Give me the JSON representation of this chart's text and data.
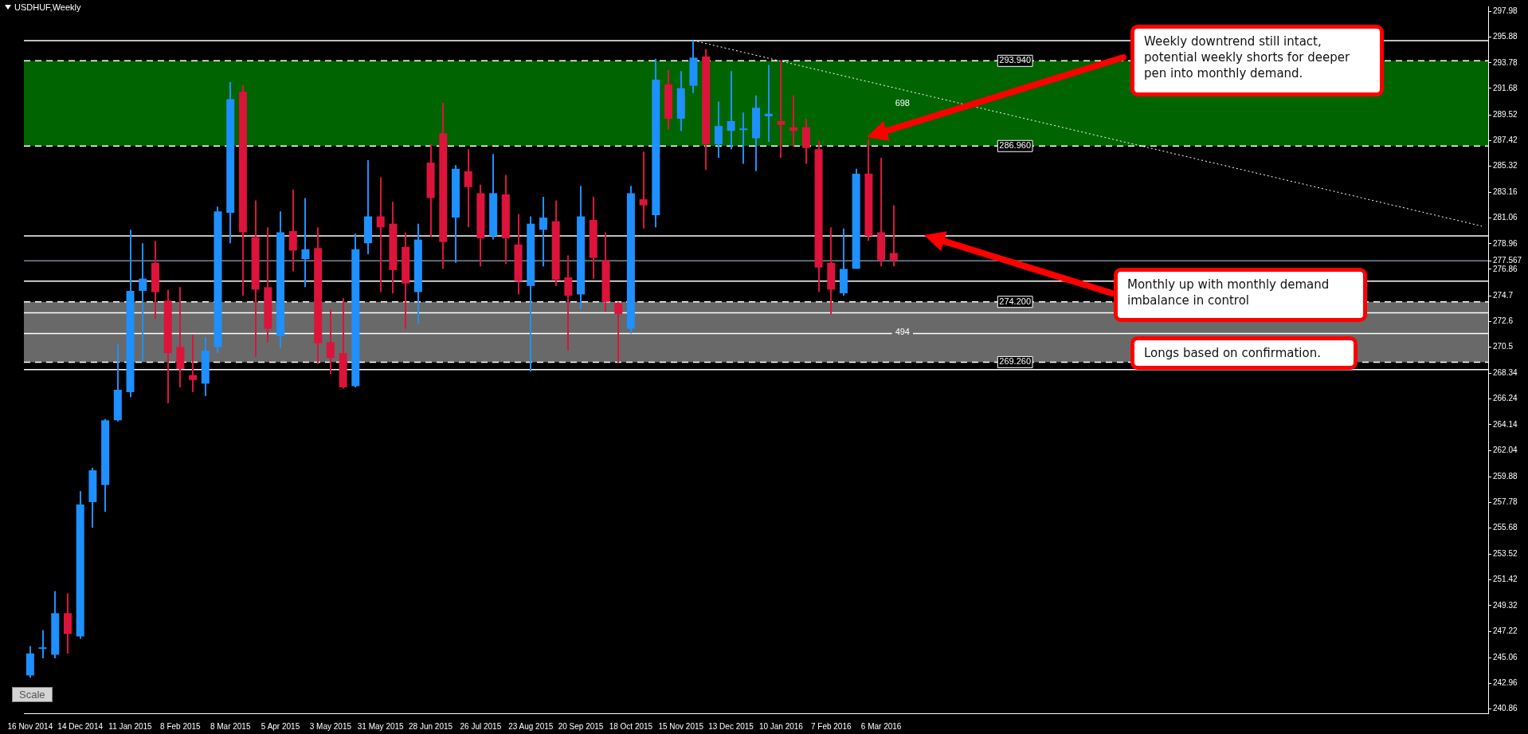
{
  "chart_data": {
    "type": "candlestick",
    "title": "USDHUF,Weekly",
    "categories": [
      "16 Nov 2014",
      null,
      null,
      null,
      "14 Dec 2014",
      null,
      null,
      null,
      "11 Jan 2015",
      null,
      null,
      null,
      "8 Feb 2015",
      null,
      null,
      null,
      "8 Mar 2015",
      null,
      null,
      null,
      "5 Apr 2015",
      null,
      null,
      null,
      "3 May 2015",
      null,
      null,
      null,
      "31 May 2015",
      null,
      null,
      null,
      "28 Jun 2015",
      null,
      null,
      null,
      "26 Jul 2015",
      null,
      null,
      null,
      "23 Aug 2015",
      null,
      null,
      null,
      "20 Sep 2015",
      null,
      null,
      null,
      "18 Oct 2015",
      null,
      null,
      null,
      "15 Nov 2015",
      null,
      null,
      null,
      "13 Dec 2015",
      null,
      null,
      null,
      "10 Jan 2016",
      null,
      null,
      null,
      "7 Feb 2016",
      null,
      null,
      null,
      "6 Mar 2016",
      null,
      null,
      null,
      null,
      null,
      null,
      null,
      null,
      null,
      null,
      null,
      null,
      null,
      null,
      null,
      null,
      null,
      null,
      null,
      null,
      null,
      null,
      null,
      null,
      null,
      null,
      null,
      null,
      null,
      null,
      null,
      null,
      null,
      null,
      null,
      null,
      null,
      null,
      null,
      null,
      null,
      null,
      null,
      null,
      null,
      null,
      null,
      null
    ],
    "series": [
      {
        "ohlc": [
          [
            243.6,
            246.0,
            243.4,
            245.4
          ],
          [
            245.8,
            247.3,
            245.0,
            245.9
          ],
          [
            245.3,
            250.5,
            245.0,
            248.7
          ],
          [
            248.7,
            250.3,
            245.4,
            247.0
          ],
          [
            246.8,
            258.7,
            246.6,
            257.6
          ],
          [
            257.8,
            260.6,
            255.7,
            260.4
          ],
          [
            259.2,
            264.6,
            257.0,
            264.5
          ],
          [
            264.5,
            270.7,
            264.4,
            267.0
          ],
          [
            266.8,
            280.1,
            266.4,
            275.1
          ],
          [
            275.1,
            279.0,
            269.3,
            276.1
          ],
          [
            277.4,
            279.2,
            272.8,
            275.0
          ],
          [
            274.3,
            275.2,
            265.9,
            270.0
          ],
          [
            270.5,
            275.4,
            267.2,
            268.7
          ],
          [
            268.2,
            271.5,
            266.8,
            267.8
          ],
          [
            267.5,
            271.3,
            266.5,
            270.2
          ],
          [
            270.5,
            282.0,
            270.0,
            281.6
          ],
          [
            281.5,
            292.2,
            279.0,
            290.8
          ],
          [
            291.4,
            291.9,
            274.7,
            279.9
          ],
          [
            279.5,
            282.5,
            269.7,
            275.2
          ],
          [
            275.4,
            280.3,
            270.9,
            272.0
          ],
          [
            271.4,
            281.6,
            270.4,
            279.9
          ],
          [
            280.0,
            283.4,
            276.7,
            278.4
          ],
          [
            277.7,
            282.7,
            275.4,
            278.5
          ],
          [
            278.6,
            280.3,
            269.1,
            270.8
          ],
          [
            270.9,
            273.6,
            268.3,
            269.6
          ],
          [
            270.0,
            274.5,
            267.1,
            267.2
          ],
          [
            267.3,
            279.8,
            267.2,
            278.5
          ],
          [
            279.0,
            285.8,
            278.1,
            281.2
          ],
          [
            281.2,
            284.4,
            275.0,
            280.3
          ],
          [
            280.6,
            282.4,
            274.9,
            276.8
          ],
          [
            278.7,
            279.9,
            272.0,
            275.7
          ],
          [
            275.0,
            280.6,
            272.4,
            279.3
          ],
          [
            285.6,
            287.1,
            279.5,
            282.7
          ],
          [
            288.0,
            290.5,
            276.9,
            279.1
          ],
          [
            281.1,
            285.4,
            277.4,
            285.1
          ],
          [
            284.9,
            286.7,
            280.3,
            283.6
          ],
          [
            283.1,
            283.8,
            277.1,
            279.4
          ],
          [
            279.6,
            286.3,
            279.3,
            283.1
          ],
          [
            283.0,
            284.6,
            277.3,
            279.4
          ],
          [
            278.9,
            281.4,
            274.8,
            275.9
          ],
          [
            275.5,
            281.2,
            268.5,
            280.6
          ],
          [
            280.1,
            282.8,
            277.1,
            281.1
          ],
          [
            280.8,
            282.5,
            275.5,
            276.0
          ],
          [
            276.2,
            278.0,
            270.2,
            274.7
          ],
          [
            274.8,
            283.7,
            273.6,
            281.2
          ],
          [
            280.9,
            282.8,
            276.1,
            277.8
          ],
          [
            277.6,
            279.9,
            273.4,
            274.2
          ],
          [
            274.1,
            274.2,
            269.2,
            273.2
          ],
          [
            272.0,
            283.7,
            271.6,
            283.1
          ],
          [
            282.6,
            286.5,
            280.2,
            282.1
          ],
          [
            281.3,
            294.1,
            280.3,
            292.4
          ],
          [
            292.0,
            293.2,
            288.3,
            289.2
          ],
          [
            289.2,
            293.1,
            288.2,
            291.7
          ],
          [
            291.9,
            295.6,
            291.3,
            294.2
          ],
          [
            294.3,
            294.9,
            285.0,
            287.1
          ],
          [
            287.1,
            290.6,
            286.0,
            288.6
          ],
          [
            288.2,
            293.1,
            286.7,
            289.0
          ],
          [
            288.3,
            289.7,
            285.5,
            288.4
          ],
          [
            287.6,
            291.1,
            284.9,
            290.1
          ],
          [
            289.4,
            293.6,
            287.3,
            289.6
          ],
          [
            289.0,
            294.0,
            286.0,
            288.7
          ],
          [
            288.5,
            291.1,
            286.9,
            288.2
          ],
          [
            288.5,
            289.2,
            285.5,
            286.8
          ],
          [
            286.7,
            287.4,
            275.0,
            277.0
          ],
          [
            277.4,
            280.3,
            273.2,
            275.2
          ],
          [
            274.9,
            280.2,
            274.7,
            276.9
          ],
          [
            276.9,
            285.1,
            276.9,
            284.7
          ],
          [
            284.7,
            287.5,
            279.2,
            279.6
          ],
          [
            279.9,
            286.0,
            277.1,
            277.6
          ],
          [
            278.2,
            282.1,
            277.1,
            277.6
          ],
          null,
          null,
          null,
          null,
          null,
          null,
          null,
          null,
          null,
          null,
          null,
          null,
          null,
          null,
          null,
          null,
          null,
          null,
          null,
          null,
          null,
          null,
          null,
          null,
          null,
          null,
          null,
          null,
          null,
          null,
          null,
          null,
          null,
          null,
          null,
          null,
          null,
          null,
          null,
          null,
          null,
          null,
          null,
          null,
          null,
          null,
          null
        ],
        "colors": [
          "#1e90ff",
          "#1e90ff",
          "#1e90ff",
          "#dc143c",
          "#1e90ff",
          "#1e90ff",
          "#1e90ff",
          "#1e90ff",
          "#1e90ff",
          "#1e90ff",
          "#dc143c",
          "#dc143c",
          "#dc143c",
          "#dc143c",
          "#1e90ff",
          "#1e90ff",
          "#1e90ff",
          "#dc143c",
          "#dc143c",
          "#dc143c",
          "#1e90ff",
          "#dc143c",
          "#1e90ff",
          "#dc143c",
          "#dc143c",
          "#dc143c",
          "#1e90ff",
          "#1e90ff",
          "#dc143c",
          "#dc143c",
          "#dc143c",
          "#1e90ff",
          "#dc143c",
          "#dc143c",
          "#1e90ff",
          "#dc143c",
          "#dc143c",
          "#1e90ff",
          "#dc143c",
          "#dc143c",
          "#1e90ff",
          "#1e90ff",
          "#dc143c",
          "#dc143c",
          "#1e90ff",
          "#dc143c",
          "#dc143c",
          "#dc143c",
          "#1e90ff",
          "#dc143c",
          "#1e90ff",
          "#dc143c",
          "#1e90ff",
          "#1e90ff",
          "#dc143c",
          "#1e90ff",
          "#1e90ff",
          "#1e90ff",
          "#1e90ff",
          "#1e90ff",
          "#dc143c",
          "#dc143c",
          "#dc143c",
          "#dc143c",
          "#dc143c",
          "#1e90ff",
          "#1e90ff",
          "#dc143c",
          "#dc143c",
          "#dc143c",
          null,
          null,
          null,
          null,
          null,
          null,
          null,
          null,
          null,
          null,
          null,
          null,
          null,
          null,
          null,
          null,
          null,
          null,
          null,
          null,
          null,
          null,
          null,
          null,
          null,
          null,
          null,
          null,
          null,
          null,
          null,
          null,
          null,
          null,
          null,
          null,
          null,
          null,
          null,
          null,
          null,
          null,
          null,
          null,
          null,
          null,
          null
        ]
      },
      {
        "type": "line",
        "color": "#ffffff",
        "line_style": "dotted",
        "values": [
          null,
          null,
          null,
          null,
          null,
          null,
          null,
          null,
          null,
          null,
          null,
          null,
          null,
          null,
          null,
          null,
          null,
          null,
          null,
          null,
          null,
          null,
          null,
          null,
          null,
          null,
          null,
          null,
          null,
          null,
          null,
          null,
          null,
          null,
          null,
          null,
          null,
          null,
          null,
          null,
          null,
          null,
          null,
          null,
          null,
          null,
          null,
          null,
          null,
          null,
          null,
          null,
          null,
          295.6,
          null,
          null,
          null,
          null,
          null,
          null,
          null,
          null,
          null,
          null,
          null,
          null,
          null,
          null,
          null,
          null,
          null,
          null,
          null,
          null,
          null,
          null,
          null,
          null,
          null,
          null,
          null,
          null,
          null,
          null,
          null,
          null,
          null,
          null,
          null,
          null,
          null,
          null,
          null,
          null,
          null,
          null,
          null,
          null,
          null,
          null,
          null,
          null,
          null,
          null,
          null,
          null,
          null,
          null,
          null,
          null,
          null,
          null,
          null,
          null,
          null,
          null,
          280.4
        ]
      }
    ],
    "ylim": [
      240.5,
      298.4
    ],
    "yticks": [
      297.98,
      295.88,
      293.78,
      291.68,
      289.52,
      287.42,
      285.32,
      283.16,
      281.06,
      278.96,
      {
        "value": 277.567,
        "label": "277.567"
      },
      276.86,
      274.7,
      272.6,
      270.5,
      268.34,
      266.24,
      264.14,
      262.04,
      259.88,
      257.78,
      255.68,
      253.52,
      251.42,
      249.32,
      247.22,
      245.06,
      242.96,
      240.86
    ],
    "bands": [
      {
        "axis": "y",
        "from": 286.96,
        "to": 293.94,
        "label": "698",
        "color": "#006400"
      },
      {
        "axis": "y",
        "from": 269.26,
        "to": 274.2,
        "label": "494",
        "color": "#696969"
      }
    ],
    "ref_lines": [
      {
        "axis": "y",
        "value": 293.94,
        "label": "293.940",
        "color": "#ffffff",
        "line_style": "dashed"
      },
      {
        "axis": "y",
        "value": 286.96,
        "label": "286.960",
        "color": "#ffffff",
        "line_style": "dashed"
      },
      {
        "axis": "y",
        "value": 274.2,
        "label": "274.200",
        "color": "#ffffff",
        "line_style": "dashed"
      },
      {
        "axis": "y",
        "value": 269.26,
        "label": "269.260",
        "color": "#ffffff",
        "line_style": "dashed"
      },
      {
        "axis": "y",
        "value": 279.6,
        "color": "#ffffff",
        "line_style": "solid"
      },
      {
        "axis": "y",
        "value": 268.65,
        "color": "#ffffff",
        "line_style": "solid"
      },
      {
        "axis": "y",
        "value": 295.6,
        "color": "#ffffff",
        "line_style": "solid"
      },
      {
        "axis": "y",
        "value": 275.9,
        "color": "#ffffff",
        "line_style": "solid"
      },
      {
        "axis": "y",
        "value": 273.3,
        "color": "#ffffff",
        "line_style": "solid"
      },
      {
        "axis": "y",
        "value": 271.6,
        "color": "#ffffff",
        "line_style": "solid"
      },
      {
        "axis": "y",
        "value": 277.567,
        "color": "#778899",
        "line_style": "solid"
      }
    ],
    "annotations": [
      "Weekly downtrend still intact, potential weekly shorts for deeper pen into monthly demand.",
      "Monthly up with monthly demand imbalance in control",
      "Longs based on confirmation.",
      "Scale"
    ],
    "grid": false,
    "legend": false
  }
}
